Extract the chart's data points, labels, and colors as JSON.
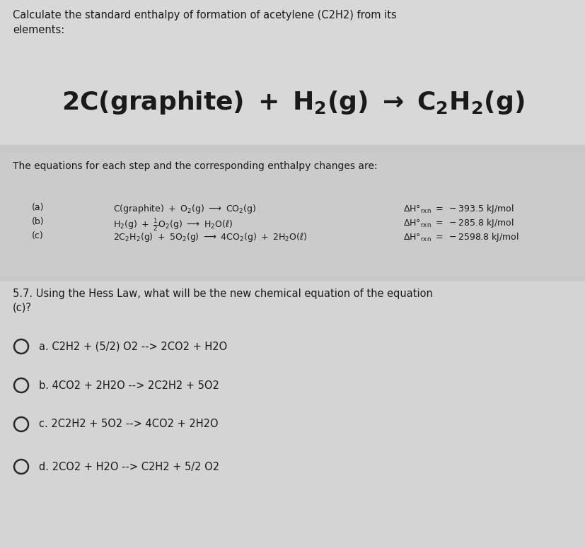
{
  "bg_color": "#c8c8c8",
  "section1_bg": "#d8d8d8",
  "section2_bg": "#cbcbcb",
  "section3_bg": "#d4d4d4",
  "header_text": "Calculate the standard enthalpy of formation of acetylene (C2H2) from its\nelements:",
  "sub_header": "The equations for each step and the corresponding enthalpy changes are:",
  "eq_a_label": "(a)",
  "eq_b_label": "(b)",
  "eq_c_label": "(c)",
  "dH_a": "ΔH°ₓₓₓ = −393.5 kJ/mol",
  "dH_b": "ΔH°ₓₓₓ = −285.8 kJ/mol",
  "dH_c": "ΔH°ₓₓₓ = −2598.8 kJ/mol",
  "question_line1": "5.7. Using the Hess Law, what will be the new chemical equation of the equation",
  "question_line2": "(c)?",
  "opt_a": "a. C2H2 + (5/2) O2 --> 2CO2 + H2O",
  "opt_b": "b. 4CO2 + 2H2O --> 2C2H2 + 5O2",
  "opt_c": "c. 2C2H2 + 5O2 --> 4CO2 + 2H2O",
  "opt_d": "d. 2CO2 + H2O --> C2H2 + 5/2 O2",
  "text_color": "#1a1a1a",
  "circle_color": "#2a2a2a",
  "font_size_header": 10.5,
  "font_size_main_eq": 26,
  "font_size_sub": 10.0,
  "font_size_eqs": 9.0,
  "font_size_question": 10.5,
  "font_size_options": 10.5
}
